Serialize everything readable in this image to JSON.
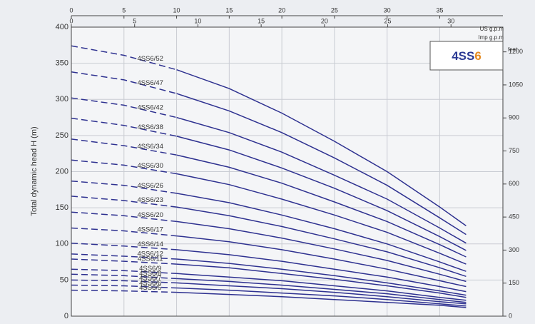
{
  "chart_data": {
    "type": "line",
    "y_label": "Total dynamic head H (m)",
    "y2_label": "feet",
    "x_label": "US g.p.m",
    "x2_label": "Imp g.p.m",
    "badge": [
      "4SS",
      "6"
    ],
    "badge_colors": [
      "#2b3a94",
      "#e58a1f"
    ],
    "xlim": [
      0,
      41
    ],
    "xticks": [
      0,
      5,
      10,
      15,
      20,
      25,
      30,
      35
    ],
    "x2lim": [
      0,
      34.1
    ],
    "x2ticks": [
      0,
      5,
      10,
      15,
      20,
      25,
      30
    ],
    "ylim": [
      0,
      400
    ],
    "yticks": [
      0,
      50,
      100,
      150,
      200,
      250,
      300,
      350,
      400
    ],
    "y2lim": [
      0,
      1312.3
    ],
    "y2ticks": [
      0,
      150,
      300,
      450,
      600,
      750,
      900,
      1050,
      1200
    ],
    "grid": true,
    "dashed_below_x": 10,
    "x": [
      0,
      5,
      10,
      15,
      20,
      25,
      30,
      35,
      37.5
    ],
    "series": [
      {
        "name": "4SS6/52",
        "color": "#2e3190",
        "values": [
          374,
          361,
          341,
          315,
          281,
          242,
          200,
          151,
          125
        ]
      },
      {
        "name": "4SS6/47",
        "color": "#2e3190",
        "values": [
          338,
          327,
          308,
          284,
          254,
          219,
          181,
          136,
          113
        ]
      },
      {
        "name": "4SS6/42",
        "color": "#2e3190",
        "values": [
          302,
          292,
          275,
          254,
          227,
          195,
          162,
          122,
          101
        ]
      },
      {
        "name": "4SS6/38",
        "color": "#2e3190",
        "values": [
          274,
          264,
          249,
          230,
          205,
          177,
          146,
          110,
          91
        ]
      },
      {
        "name": "4SS6/34",
        "color": "#2e3190",
        "values": [
          245,
          236,
          223,
          206,
          184,
          158,
          131,
          99,
          82
        ]
      },
      {
        "name": "4SS6/30",
        "color": "#2e3190",
        "values": [
          216,
          209,
          197,
          182,
          162,
          140,
          116,
          87,
          72
        ]
      },
      {
        "name": "4SS6/26",
        "color": "#2e3190",
        "values": [
          187,
          181,
          170,
          157,
          140,
          121,
          100,
          75,
          62
        ]
      },
      {
        "name": "4SS6/23",
        "color": "#2e3190",
        "values": [
          166,
          160,
          151,
          139,
          124,
          107,
          89,
          67,
          55
        ]
      },
      {
        "name": "4SS6/20",
        "color": "#2e3190",
        "values": [
          144,
          139,
          131,
          121,
          108,
          93,
          77,
          58,
          48
        ]
      },
      {
        "name": "4SS6/17",
        "color": "#2e3190",
        "values": [
          122,
          118,
          111,
          103,
          92,
          79,
          65,
          49,
          41
        ]
      },
      {
        "name": "4SS6/14",
        "color": "#2e3190",
        "values": [
          101,
          97,
          92,
          85,
          76,
          65,
          54,
          41,
          34
        ]
      },
      {
        "name": "4SS6/12",
        "color": "#2e3190",
        "values": [
          86,
          83,
          79,
          73,
          65,
          56,
          46,
          35,
          29
        ]
      },
      {
        "name": "4SS6/11",
        "color": "#2e3190",
        "values": [
          79,
          76,
          72,
          67,
          59,
          51,
          42,
          32,
          26
        ]
      },
      {
        "name": "4SS6/9",
        "color": "#2e3190",
        "values": [
          65,
          63,
          59,
          54,
          49,
          42,
          35,
          26,
          22
        ]
      },
      {
        "name": "4SS6/8",
        "color": "#2e3190",
        "values": [
          58,
          56,
          52,
          48,
          43,
          37,
          31,
          23,
          19
        ]
      },
      {
        "name": "4SS6/7",
        "color": "#2e3190",
        "values": [
          50,
          49,
          46,
          42,
          38,
          33,
          27,
          20,
          17
        ]
      },
      {
        "name": "4SS6/6",
        "color": "#2e3190",
        "values": [
          43,
          42,
          39,
          36,
          32,
          28,
          23,
          17,
          14
        ]
      },
      {
        "name": "4SS6/5",
        "color": "#2e3190",
        "values": [
          36,
          35,
          33,
          30,
          27,
          23,
          19,
          15,
          12
        ]
      }
    ]
  }
}
